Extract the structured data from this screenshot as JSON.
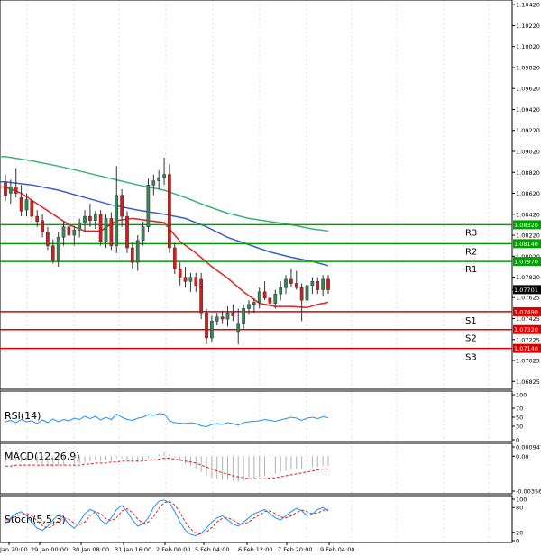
{
  "chart_data": {
    "type": "candlestick",
    "symbol_timeframe_note": "",
    "price_axis": {
      "ylim": [
        1.0675,
        1.1043
      ],
      "ticks": [
        "1.10420",
        "1.10220",
        "1.10020",
        "1.09820",
        "1.09620",
        "1.09420",
        "1.09220",
        "1.09020",
        "1.08820",
        "1.08620",
        "1.08420",
        "1.08220",
        "1.08020",
        "1.07820",
        "1.07625",
        "1.07425",
        "1.07225",
        "1.07025",
        "1.06825"
      ],
      "tick_values": [
        1.1042,
        1.1022,
        1.1002,
        1.0982,
        1.0962,
        1.0942,
        1.0922,
        1.0902,
        1.0882,
        1.0862,
        1.0842,
        1.0822,
        1.0802,
        1.0782,
        1.07625,
        1.07425,
        1.07225,
        1.07025,
        1.06825
      ]
    },
    "x_labels": [
      "Jan 20:00",
      "29 Jan 00:00",
      "30 Jan 08:00",
      "31 Jan 16:00",
      "2 Feb 00:00",
      "5 Feb 04:00",
      "6 Feb 12:00",
      "7 Feb 20:00",
      "9 Feb 04:00"
    ],
    "current_price": {
      "label": "1.07701",
      "value": 1.07701
    },
    "levels": [
      {
        "name": "R3",
        "label": "1.08320",
        "value": 1.0832,
        "color": "#00a000"
      },
      {
        "name": "R2",
        "label": "1.08140",
        "value": 1.0814,
        "color": "#00a000"
      },
      {
        "name": "R1",
        "label": "1.07970",
        "value": 1.0797,
        "color": "#00a000"
      },
      {
        "name": "S1",
        "label": "1.07490",
        "value": 1.0749,
        "color": "#e00000"
      },
      {
        "name": "S2",
        "label": "1.07320",
        "value": 1.0732,
        "color": "#e00000"
      },
      {
        "name": "S3",
        "label": "1.07140",
        "value": 1.0714,
        "color": "#e00000"
      }
    ],
    "candles": [
      [
        1.0872,
        1.088,
        1.0855,
        1.086
      ],
      [
        1.0862,
        1.0875,
        1.0852,
        1.0868
      ],
      [
        1.0868,
        1.0886,
        1.0858,
        1.0862
      ],
      [
        1.0858,
        1.087,
        1.084,
        1.0845
      ],
      [
        1.0846,
        1.0862,
        1.084,
        1.0856
      ],
      [
        1.0855,
        1.086,
        1.0835,
        1.084
      ],
      [
        1.084,
        1.0846,
        1.083,
        1.0835
      ],
      [
        1.0836,
        1.0842,
        1.082,
        1.0825
      ],
      [
        1.0825,
        1.083,
        1.0808,
        1.0812
      ],
      [
        1.0812,
        1.0818,
        1.0795,
        1.0798
      ],
      [
        1.0798,
        1.0825,
        1.0792,
        1.082
      ],
      [
        1.082,
        1.0835,
        1.0812,
        1.083
      ],
      [
        1.083,
        1.0838,
        1.0815,
        1.0822
      ],
      [
        1.0822,
        1.083,
        1.0812,
        1.0827
      ],
      [
        1.0827,
        1.0838,
        1.082,
        1.0834
      ],
      [
        1.0834,
        1.0846,
        1.0825,
        1.084
      ],
      [
        1.084,
        1.0852,
        1.083,
        1.0836
      ],
      [
        1.0836,
        1.0845,
        1.0828,
        1.0842
      ],
      [
        1.0842,
        1.0846,
        1.0812,
        1.0816
      ],
      [
        1.0816,
        1.0842,
        1.081,
        1.0838
      ],
      [
        1.0838,
        1.0844,
        1.0808,
        1.0812
      ],
      [
        1.0812,
        1.0888,
        1.0805,
        1.086
      ],
      [
        1.086,
        1.0866,
        1.083,
        1.084
      ],
      [
        1.084,
        1.0845,
        1.0805,
        1.081
      ],
      [
        1.081,
        1.0815,
        1.079,
        1.0796
      ],
      [
        1.0796,
        1.0822,
        1.0788,
        1.0817
      ],
      [
        1.0817,
        1.0835,
        1.0812,
        1.083
      ],
      [
        1.083,
        1.0876,
        1.0825,
        1.087
      ],
      [
        1.087,
        1.088,
        1.086,
        1.0874
      ],
      [
        1.0874,
        1.0884,
        1.0866,
        1.0877
      ],
      [
        1.0877,
        1.0896,
        1.087,
        1.088
      ],
      [
        1.088,
        1.089,
        1.0805,
        1.081
      ],
      [
        1.081,
        1.0815,
        1.0785,
        1.079
      ],
      [
        1.079,
        1.0796,
        1.0774,
        1.0782
      ],
      [
        1.0782,
        1.0792,
        1.0772,
        1.0778
      ],
      [
        1.0778,
        1.0786,
        1.0768,
        1.0782
      ],
      [
        1.0782,
        1.0786,
        1.0768,
        1.0774
      ],
      [
        1.078,
        1.0786,
        1.0742,
        1.0748
      ],
      [
        1.0748,
        1.0752,
        1.0718,
        1.0724
      ],
      [
        1.0724,
        1.0745,
        1.072,
        1.074
      ],
      [
        1.074,
        1.0748,
        1.0736,
        1.0744
      ],
      [
        1.0744,
        1.075,
        1.0738,
        1.0742
      ],
      [
        1.0742,
        1.0754,
        1.0735,
        1.0748
      ],
      [
        1.0748,
        1.0756,
        1.074,
        1.0745
      ],
      [
        1.073,
        1.0752,
        1.0718,
        1.0738
      ],
      [
        1.0738,
        1.0756,
        1.0732,
        1.0752
      ],
      [
        1.0752,
        1.076,
        1.0746,
        1.0756
      ],
      [
        1.0756,
        1.0762,
        1.0748,
        1.0758
      ],
      [
        1.0758,
        1.0772,
        1.0752,
        1.0768
      ],
      [
        1.0768,
        1.0778,
        1.076,
        1.0762
      ],
      [
        1.0762,
        1.077,
        1.0754,
        1.0757
      ],
      [
        1.0757,
        1.077,
        1.0752,
        1.0766
      ],
      [
        1.0766,
        1.0778,
        1.076,
        1.0772
      ],
      [
        1.0772,
        1.0784,
        1.0766,
        1.078
      ],
      [
        1.078,
        1.079,
        1.0772,
        1.0776
      ],
      [
        1.0776,
        1.0788,
        1.077,
        1.0772
      ],
      [
        1.0772,
        1.0776,
        1.074,
        1.076
      ],
      [
        1.076,
        1.0778,
        1.0756,
        1.0774
      ],
      [
        1.0774,
        1.0782,
        1.0766,
        1.0778
      ],
      [
        1.0778,
        1.0782,
        1.0766,
        1.077
      ],
      [
        1.077,
        1.0784,
        1.0764,
        1.078
      ],
      [
        1.078,
        1.0784,
        1.0766,
        1.077
      ]
    ],
    "moving_averages": [
      {
        "color": "#3cb371",
        "values": [
          [
            0,
            1.0897
          ],
          [
            5,
            1.0893
          ],
          [
            10,
            1.0888
          ],
          [
            15,
            1.0882
          ],
          [
            20,
            1.0876
          ],
          [
            25,
            1.087
          ],
          [
            30,
            1.0865
          ],
          [
            34,
            1.0858
          ],
          [
            38,
            1.085
          ],
          [
            42,
            1.0843
          ],
          [
            46,
            1.0838
          ],
          [
            50,
            1.0835
          ],
          [
            54,
            1.0832
          ],
          [
            58,
            1.0828
          ],
          [
            61,
            1.0826
          ]
        ]
      },
      {
        "color": "#3a5fcd",
        "values": [
          [
            0,
            1.0873
          ],
          [
            5,
            1.087
          ],
          [
            10,
            1.0865
          ],
          [
            15,
            1.0858
          ],
          [
            20,
            1.0851
          ],
          [
            25,
            1.0846
          ],
          [
            30,
            1.0842
          ],
          [
            34,
            1.0838
          ],
          [
            38,
            1.083
          ],
          [
            42,
            1.082
          ],
          [
            46,
            1.0813
          ],
          [
            50,
            1.0806
          ],
          [
            54,
            1.0801
          ],
          [
            58,
            1.0797
          ],
          [
            61,
            1.0793
          ]
        ]
      },
      {
        "color": "#e02020",
        "values": [
          [
            0,
            1.0868
          ],
          [
            3,
            1.0862
          ],
          [
            6,
            1.0852
          ],
          [
            9,
            1.0842
          ],
          [
            12,
            1.0832
          ],
          [
            15,
            1.0826
          ],
          [
            18,
            1.0826
          ],
          [
            21,
            1.0836
          ],
          [
            24,
            1.0838
          ],
          [
            27,
            1.0836
          ],
          [
            30,
            1.0834
          ],
          [
            33,
            1.0816
          ],
          [
            36,
            1.0805
          ],
          [
            39,
            1.0792
          ],
          [
            42,
            1.0781
          ],
          [
            45,
            1.0768
          ],
          [
            48,
            1.0757
          ],
          [
            51,
            1.0754
          ],
          [
            54,
            1.0754
          ],
          [
            57,
            1.0753
          ],
          [
            59,
            1.0756
          ],
          [
            61,
            1.0758
          ]
        ]
      }
    ],
    "rsi": {
      "label": "RSI(14)",
      "ticks": [
        "100",
        "70",
        "50",
        "30",
        "0"
      ],
      "tick_values": [
        100,
        70,
        50,
        30,
        0
      ],
      "ylim": [
        0,
        100
      ],
      "color": "#1e90ff",
      "values": [
        40,
        43,
        38,
        45,
        40,
        42,
        36,
        44,
        38,
        46,
        40,
        45,
        42,
        48,
        45,
        52,
        47,
        52,
        44,
        50,
        45,
        57,
        50,
        45,
        43,
        48,
        50,
        56,
        54,
        58,
        57,
        42,
        38,
        37,
        36,
        38,
        36,
        31,
        29,
        34,
        36,
        34,
        38,
        36,
        32,
        38,
        40,
        41,
        42,
        45,
        43,
        41,
        44,
        47,
        50,
        48,
        43,
        48,
        50,
        47,
        51,
        49
      ]
    },
    "macd": {
      "label": "MACD(12,26,9)",
      "ticks": [
        "0.000947",
        "0.00",
        "-0.003561"
      ],
      "tick_values": [
        0.000947,
        0.0,
        -0.003561
      ],
      "ylim": [
        -0.003561,
        0.000947
      ],
      "hist_color": "#b0b0b0",
      "signal_color": "#e02020",
      "histogram": [
        -0.0006,
        -0.0005,
        -0.0005,
        -0.0006,
        -0.0005,
        -0.0006,
        -0.0007,
        -0.0008,
        -0.0009,
        -0.0011,
        -0.001,
        -0.0009,
        -0.0009,
        -0.0008,
        -0.0007,
        -0.0006,
        -0.0005,
        -0.0004,
        -0.0005,
        -0.0004,
        -0.0005,
        -0.0002,
        -0.0002,
        -0.0004,
        -0.0006,
        -0.0006,
        -0.0005,
        -0.0002,
        0.0,
        0.0002,
        0.0004,
        0.0002,
        -0.0002,
        -0.0005,
        -0.0008,
        -0.001,
        -0.0012,
        -0.0016,
        -0.002,
        -0.0022,
        -0.0023,
        -0.0024,
        -0.0024,
        -0.0025,
        -0.0026,
        -0.0025,
        -0.0024,
        -0.0023,
        -0.0021,
        -0.002,
        -0.0019,
        -0.0018,
        -0.0016,
        -0.0015,
        -0.0013,
        -0.0013,
        -0.0013,
        -0.0012,
        -0.0011,
        -0.0011,
        -0.001,
        -0.001
      ],
      "signal": [
        -0.001,
        -0.001,
        -0.0009,
        -0.0009,
        -0.0009,
        -0.0009,
        -0.0009,
        -0.0009,
        -0.0009,
        -0.0009,
        -0.0009,
        -0.0009,
        -0.0009,
        -0.0009,
        -0.0009,
        -0.0008,
        -0.0008,
        -0.0007,
        -0.0007,
        -0.0007,
        -0.0006,
        -0.0006,
        -0.0005,
        -0.0005,
        -0.0005,
        -0.0005,
        -0.0005,
        -0.0004,
        -0.0004,
        -0.0003,
        -0.0002,
        -0.0002,
        -0.0003,
        -0.0004,
        -0.0005,
        -0.0006,
        -0.0007,
        -0.0009,
        -0.0011,
        -0.0013,
        -0.0015,
        -0.0017,
        -0.0018,
        -0.002,
        -0.0021,
        -0.0022,
        -0.0023,
        -0.0023,
        -0.0023,
        -0.0023,
        -0.0022,
        -0.0022,
        -0.0021,
        -0.002,
        -0.0019,
        -0.0018,
        -0.0017,
        -0.0016,
        -0.0015,
        -0.0014,
        -0.0013,
        -0.0013
      ]
    },
    "stoch": {
      "label": "Stoch(5,5,3)",
      "ticks": [
        "100",
        "80",
        "20",
        "0"
      ],
      "tick_values": [
        100,
        80,
        20,
        0
      ],
      "ylim": [
        0,
        100
      ],
      "k_color": "#1e90ff",
      "d_color": "#e02020",
      "k": [
        40,
        55,
        65,
        70,
        60,
        45,
        30,
        25,
        35,
        50,
        62,
        55,
        40,
        30,
        45,
        65,
        75,
        70,
        50,
        40,
        55,
        75,
        85,
        70,
        50,
        35,
        40,
        55,
        80,
        95,
        98,
        92,
        70,
        45,
        25,
        15,
        12,
        18,
        30,
        45,
        55,
        60,
        50,
        40,
        35,
        45,
        55,
        65,
        70,
        75,
        65,
        55,
        50,
        60,
        70,
        78,
        72,
        60,
        65,
        75,
        80,
        72
      ],
      "d": [
        50,
        52,
        58,
        64,
        66,
        60,
        48,
        36,
        30,
        36,
        48,
        55,
        52,
        42,
        38,
        45,
        60,
        70,
        65,
        53,
        48,
        55,
        72,
        77,
        68,
        52,
        42,
        45,
        58,
        78,
        92,
        95,
        86,
        68,
        45,
        28,
        18,
        16,
        20,
        32,
        45,
        54,
        55,
        50,
        42,
        40,
        45,
        55,
        62,
        70,
        72,
        65,
        57,
        55,
        60,
        68,
        74,
        70,
        65,
        67,
        73,
        76
      ]
    }
  }
}
